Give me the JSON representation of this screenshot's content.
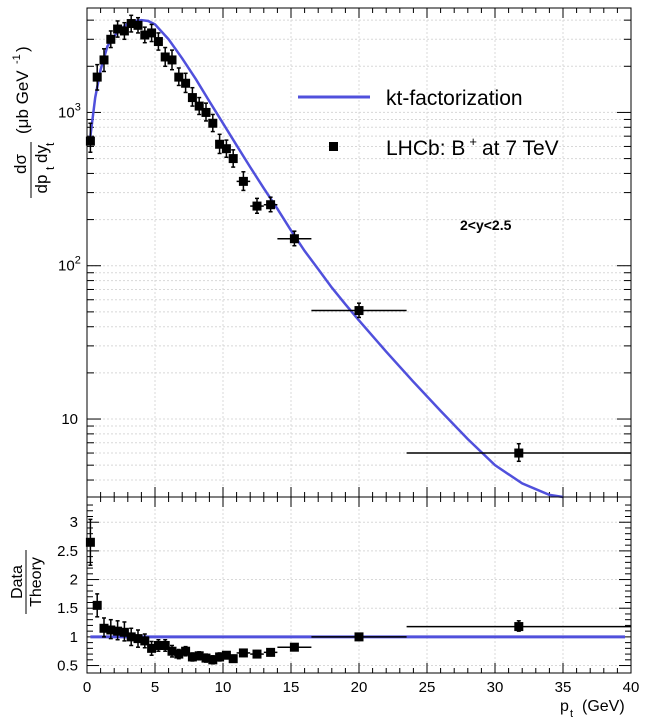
{
  "chart_data": [
    {
      "type": "scatter",
      "panel": "main",
      "yscale": "log",
      "xlim": [
        0,
        40
      ],
      "ylim": [
        3.1,
        4800
      ],
      "ylabel": {
        "num": "dσ",
        "den_main": "dp",
        "den_sub": "t",
        "den_tail": "dy",
        "den_sub2": "t",
        "unit": "(μb GeV",
        "unit_exp": "-1",
        "unit_close": ")"
      },
      "y_ticks": [
        {
          "value": 10,
          "base": "10",
          "exp": ""
        },
        {
          "value": 100,
          "base": "10",
          "exp": "2"
        },
        {
          "value": 1000,
          "base": "10",
          "exp": "3"
        }
      ],
      "legend": {
        "position": "top-right",
        "theory_label": "kt-factorization",
        "data_label_main": "LHCb: B",
        "data_label_sup": "+",
        "data_label_tail": "at 7 TeV"
      },
      "annotation": "2<y<2.5",
      "theory_color": "#5050dc",
      "data_color": "#000000",
      "theory_curve": {
        "name": "kt-factorization",
        "x": [
          0.25,
          0.6,
          1.0,
          1.5,
          2.0,
          2.5,
          3.0,
          3.5,
          4.0,
          4.5,
          5.0,
          6.0,
          7.0,
          8.0,
          9.0,
          10.0,
          11.0,
          12.0,
          13.0,
          14.0,
          15.0,
          16.0,
          17.0,
          18.0,
          19.0,
          20.0,
          22.0,
          24.0,
          26.0,
          28.0,
          30.0,
          32.0,
          34.0,
          35.0
        ],
        "y": [
          700,
          1250,
          1900,
          2700,
          3150,
          3500,
          3800,
          3950,
          4000,
          3950,
          3750,
          3000,
          2250,
          1650,
          1180,
          850,
          610,
          440,
          320,
          235,
          170,
          125,
          95,
          72,
          56,
          44,
          27.5,
          17.5,
          11.3,
          7.4,
          5.0,
          3.8,
          3.2,
          3.0
        ]
      },
      "series": [
        {
          "name": "LHCb: B+ at 7 TeV",
          "x": [
            0.25,
            0.75,
            1.25,
            1.75,
            2.25,
            2.75,
            3.25,
            3.75,
            4.25,
            4.75,
            5.25,
            5.75,
            6.25,
            6.75,
            7.25,
            7.75,
            8.25,
            8.75,
            9.25,
            9.75,
            10.25,
            10.75,
            11.5,
            12.5,
            13.5,
            15.25,
            20.0,
            31.75
          ],
          "xerr": [
            0.25,
            0.25,
            0.25,
            0.25,
            0.25,
            0.25,
            0.25,
            0.25,
            0.25,
            0.25,
            0.25,
            0.25,
            0.25,
            0.25,
            0.25,
            0.25,
            0.25,
            0.25,
            0.25,
            0.25,
            0.25,
            0.25,
            0.5,
            0.5,
            0.5,
            1.25,
            3.5,
            8.25
          ],
          "y": [
            650,
            1700,
            2200,
            3000,
            3500,
            3400,
            3800,
            3700,
            3200,
            3300,
            2900,
            2300,
            2200,
            1700,
            1550,
            1250,
            1100,
            1000,
            850,
            620,
            580,
            500,
            355,
            245,
            250,
            150,
            51,
            6
          ],
          "yerr_lo": [
            100,
            300,
            350,
            350,
            400,
            400,
            450,
            400,
            350,
            400,
            350,
            300,
            300,
            200,
            200,
            150,
            130,
            120,
            100,
            80,
            70,
            60,
            45,
            25,
            25,
            15,
            5,
            0.7
          ],
          "yerr_hi": [
            200,
            350,
            400,
            400,
            450,
            450,
            500,
            450,
            400,
            450,
            400,
            350,
            350,
            250,
            250,
            200,
            150,
            150,
            120,
            100,
            80,
            70,
            55,
            30,
            30,
            18,
            6,
            0.9
          ]
        }
      ]
    },
    {
      "type": "scatter",
      "panel": "ratio",
      "yscale": "linear",
      "xlim": [
        0,
        40
      ],
      "ylim": [
        0.37,
        3.44
      ],
      "xlabel": {
        "main": "p",
        "sub": "t",
        "unit": "(GeV)"
      },
      "ylabel": {
        "num": "Data",
        "den": "Theory"
      },
      "x_ticks": [
        "0",
        "5",
        "10",
        "15",
        "20",
        "25",
        "30",
        "35",
        "40"
      ],
      "y_ticks": [
        "0.5",
        "1",
        "1.5",
        "2",
        "2.5",
        "3"
      ],
      "reference_line": {
        "y": 1.0,
        "x": [
          0.25,
          40
        ]
      },
      "series": [
        {
          "name": "Data/Theory",
          "x": [
            0.25,
            0.75,
            1.25,
            1.75,
            2.25,
            2.75,
            3.25,
            3.75,
            4.25,
            4.75,
            5.25,
            5.75,
            6.25,
            6.75,
            7.25,
            7.75,
            8.25,
            8.75,
            9.25,
            9.75,
            10.25,
            10.75,
            11.5,
            12.5,
            13.5,
            15.25,
            20.0,
            31.75
          ],
          "xerr": [
            0.25,
            0.25,
            0.25,
            0.25,
            0.25,
            0.25,
            0.25,
            0.25,
            0.25,
            0.25,
            0.25,
            0.25,
            0.25,
            0.25,
            0.25,
            0.25,
            0.25,
            0.25,
            0.25,
            0.25,
            0.25,
            0.25,
            0.5,
            0.5,
            0.5,
            1.25,
            3.5,
            8.25
          ],
          "y": [
            2.65,
            1.55,
            1.15,
            1.12,
            1.1,
            1.08,
            1.0,
            0.97,
            0.93,
            0.8,
            0.85,
            0.85,
            0.75,
            0.7,
            0.75,
            0.65,
            0.67,
            0.63,
            0.6,
            0.65,
            0.68,
            0.62,
            0.72,
            0.7,
            0.73,
            0.82,
            1.0,
            1.18
          ],
          "yerr_lo": [
            0.4,
            0.2,
            0.15,
            0.15,
            0.15,
            0.15,
            0.15,
            0.15,
            0.12,
            0.12,
            0.1,
            0.1,
            0.1,
            0.08,
            0.08,
            0.07,
            0.07,
            0.07,
            0.07,
            0.07,
            0.06,
            0.06,
            0.06,
            0.06,
            0.06,
            0.06,
            0.06,
            0.08
          ],
          "yerr_hi": [
            0.4,
            0.2,
            0.18,
            0.18,
            0.18,
            0.18,
            0.15,
            0.15,
            0.12,
            0.12,
            0.1,
            0.1,
            0.1,
            0.08,
            0.08,
            0.07,
            0.07,
            0.07,
            0.07,
            0.07,
            0.06,
            0.06,
            0.06,
            0.06,
            0.06,
            0.06,
            0.06,
            0.1
          ]
        }
      ]
    }
  ]
}
